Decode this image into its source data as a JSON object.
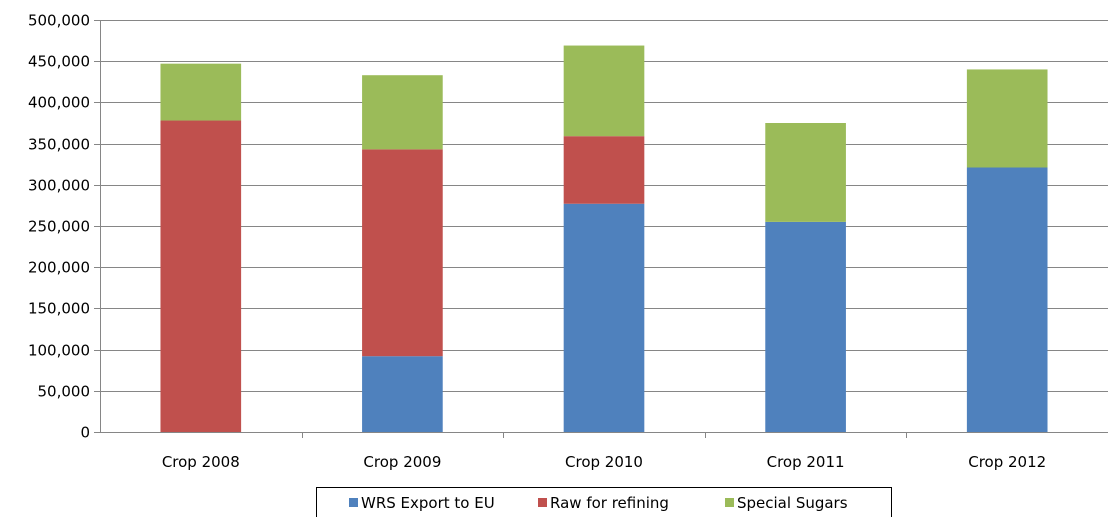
{
  "chart_data": {
    "type": "bar",
    "stacked": true,
    "categories": [
      "Crop 2008",
      "Crop 2009",
      "Crop 2010",
      "Crop 2011",
      "Crop 2012"
    ],
    "series": [
      {
        "name": "WRS Export to EU",
        "color": "#4F81BD",
        "values": [
          0,
          92000,
          277000,
          255000,
          321000
        ]
      },
      {
        "name": "Raw for refining",
        "color": "#C0504D",
        "values": [
          378000,
          251000,
          82000,
          0,
          0
        ]
      },
      {
        "name": "Special Sugars",
        "color": "#9BBB59",
        "values": [
          69000,
          90000,
          110000,
          120000,
          119000
        ]
      }
    ],
    "ylim": [
      0,
      500000
    ],
    "yticks": [
      "0",
      "50,000",
      "100,000",
      "150,000",
      "200,000",
      "250,000",
      "300,000",
      "350,000",
      "400,000",
      "450,000",
      "500,000"
    ],
    "grid": true,
    "legend_position": "bottom"
  }
}
